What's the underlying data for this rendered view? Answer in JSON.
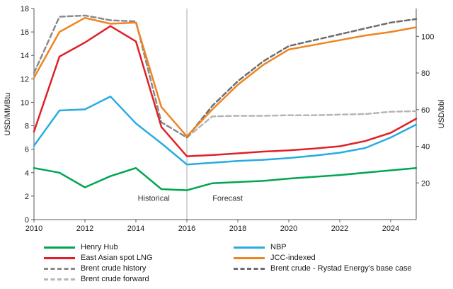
{
  "chart_data": {
    "type": "line",
    "x": [
      2010,
      2011,
      2012,
      2013,
      2014,
      2015,
      2016,
      2017,
      2018,
      2019,
      2020,
      2021,
      2022,
      2023,
      2024,
      2025
    ],
    "x_ticks": [
      2010,
      2012,
      2014,
      2016,
      2018,
      2020,
      2022,
      2024
    ],
    "left_axis": {
      "label": "USD/MMBtu",
      "min": 0,
      "max": 18,
      "tick_step": 2
    },
    "right_axis": {
      "label": "USD/bbl",
      "ticks": [
        20,
        40,
        60,
        80,
        100
      ],
      "scale_per_left_unit": 6.4
    },
    "divider_year": 2016,
    "annotations": [
      {
        "text": "Historical",
        "year": 2014.7,
        "value": 1.6
      },
      {
        "text": "Forecast",
        "year": 2017.6,
        "value": 1.6
      }
    ],
    "series": [
      {
        "name": "Brent crude forward",
        "color": "#b5b5b5",
        "dash": "7,4",
        "values": [
          null,
          null,
          null,
          null,
          null,
          null,
          7.0,
          8.8,
          8.85,
          8.85,
          8.9,
          8.9,
          8.95,
          9.0,
          9.2,
          9.25
        ]
      },
      {
        "name": "Brent crude history",
        "color": "#8a8a8a",
        "dash": "7,4",
        "values": [
          12.5,
          17.3,
          17.4,
          17.0,
          16.9,
          8.3,
          7.0,
          null,
          null,
          null,
          null,
          null,
          null,
          null,
          null,
          null
        ]
      },
      {
        "name": "Brent crude - Rystad Energy's base case",
        "color": "#6d6d6d",
        "dash": "7,4",
        "values": [
          null,
          null,
          null,
          null,
          null,
          null,
          7.0,
          9.7,
          11.8,
          13.5,
          14.8,
          15.3,
          15.8,
          16.3,
          16.8,
          17.1
        ]
      },
      {
        "name": "JCC-indexed",
        "color": "#ee8422",
        "dash": null,
        "values": [
          12.1,
          16.0,
          17.2,
          16.7,
          16.8,
          9.6,
          7.1,
          9.4,
          11.5,
          13.2,
          14.5,
          14.9,
          15.3,
          15.7,
          16.0,
          16.4
        ]
      },
      {
        "name": "East Asian spot LNG",
        "color": "#e02127",
        "dash": null,
        "values": [
          7.5,
          13.9,
          15.1,
          16.5,
          15.2,
          7.9,
          5.4,
          5.5,
          5.65,
          5.8,
          5.9,
          6.05,
          6.25,
          6.7,
          7.4,
          8.6
        ]
      },
      {
        "name": "NBP",
        "color": "#29abe2",
        "dash": null,
        "values": [
          6.3,
          9.3,
          9.4,
          10.5,
          8.2,
          6.5,
          4.7,
          4.85,
          5.0,
          5.1,
          5.25,
          5.45,
          5.7,
          6.1,
          7.0,
          8.1
        ]
      },
      {
        "name": "Henry Hub",
        "color": "#00a550",
        "dash": null,
        "values": [
          4.4,
          4.0,
          2.75,
          3.7,
          4.4,
          2.6,
          2.5,
          3.1,
          3.2,
          3.3,
          3.5,
          3.65,
          3.8,
          4.0,
          4.2,
          4.4
        ]
      }
    ]
  },
  "legend": {
    "rows": [
      [
        "Henry Hub",
        "NBP"
      ],
      [
        "East Asian spot LNG",
        "JCC-indexed"
      ],
      [
        "Brent crude history",
        "Brent crude - Rystad Energy's base case"
      ],
      [
        "Brent crude forward",
        null
      ]
    ]
  }
}
